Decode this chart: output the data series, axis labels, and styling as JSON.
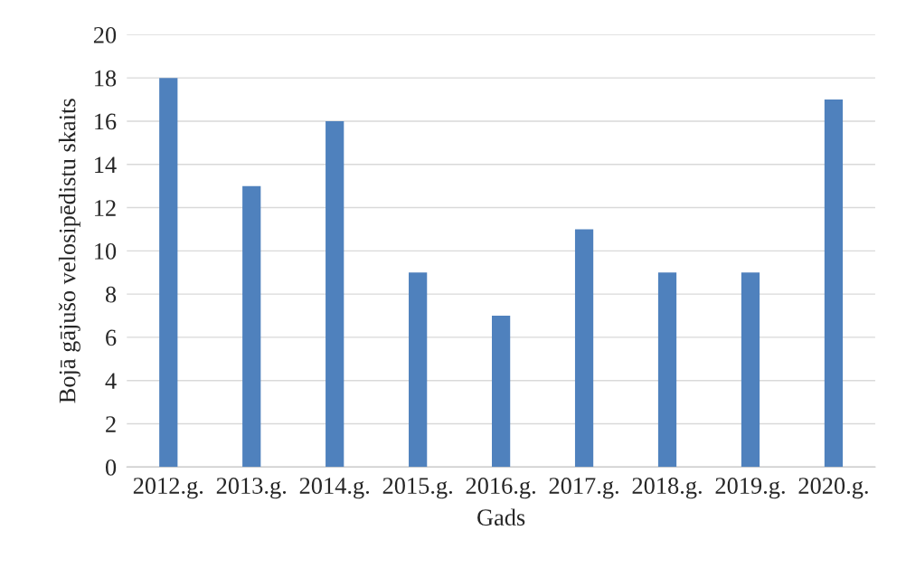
{
  "chart_data": {
    "type": "bar",
    "xlabel": "Gads",
    "ylabel": "Bojā gājušo velosipēdistu skaits",
    "categories": [
      "2012.g.",
      "2013.g.",
      "2014.g.",
      "2015.g.",
      "2016.g.",
      "2017.g.",
      "2018.g.",
      "2019.g.",
      "2020.g."
    ],
    "values": [
      18,
      13,
      16,
      9,
      7,
      11,
      9,
      9,
      17
    ],
    "color": "#4f81bd",
    "ylim": [
      0,
      20
    ],
    "yticks": [
      0,
      2,
      4,
      6,
      8,
      10,
      12,
      14,
      16,
      18,
      20
    ],
    "grid": "y",
    "legend": false
  }
}
